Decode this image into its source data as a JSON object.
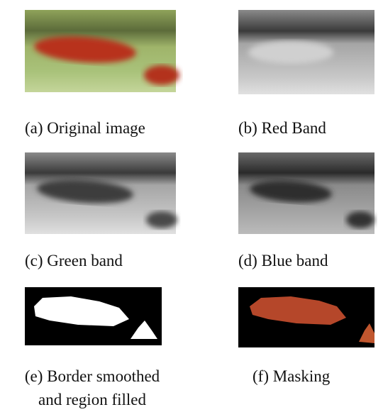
{
  "figure": {
    "panels": [
      {
        "caption_lines": [
          "(a) Original image"
        ]
      },
      {
        "caption_lines": [
          "(b) Red Band"
        ]
      },
      {
        "caption_lines": [
          "(c) Green band"
        ]
      },
      {
        "caption_lines": [
          "(d) Blue band"
        ]
      },
      {
        "caption_lines": [
          "(e) Border smoothed",
          "and region filled"
        ]
      },
      {
        "caption_lines": [
          "(f) Masking"
        ]
      }
    ]
  }
}
